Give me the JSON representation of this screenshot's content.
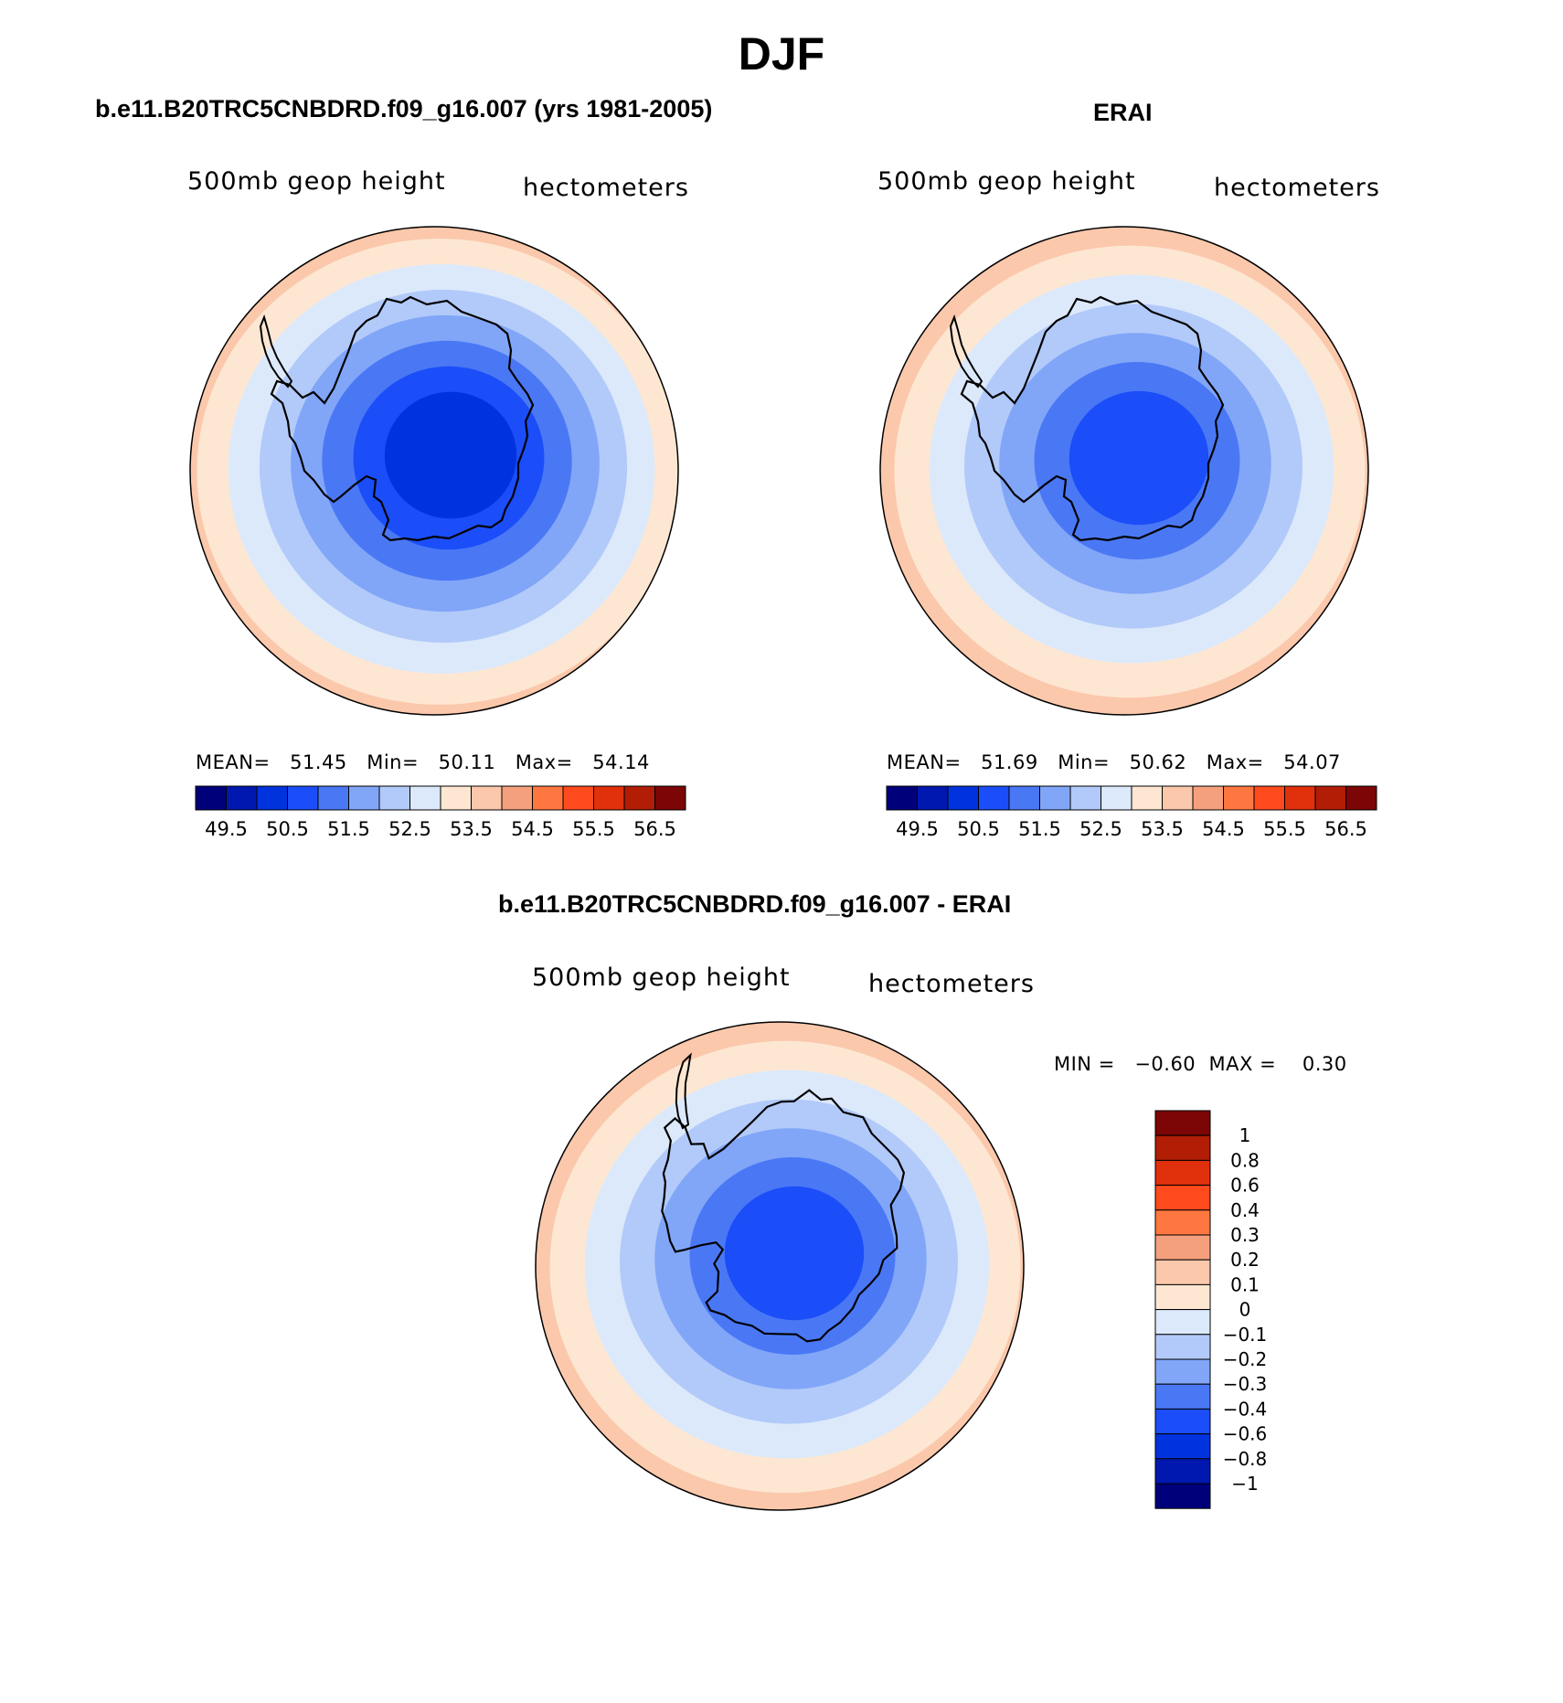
{
  "figure": {
    "season": "DJF",
    "coastline_color": "#000000"
  },
  "panels": {
    "model": {
      "title": "b.e11.B20TRC5CNBDRD.f09_g16.007 (yrs 1981-2005)",
      "variable": "500mb geop height",
      "units": "hectometers",
      "stats": "MEAN=   51.45   Min=   50.11   Max=   54.14"
    },
    "obs": {
      "title": "ERAI",
      "variable": "500mb geop height",
      "units": "hectometers",
      "stats": "MEAN=   51.69   Min=   50.62   Max=   54.07"
    },
    "diff": {
      "title": "b.e11.B20TRC5CNBDRD.f09_g16.007 - ERAI",
      "variable": "500mb geop height",
      "units": "hectometers",
      "stats": "MIN =   −0.60  MAX =    0.30"
    }
  },
  "chart_data": [
    {
      "type": "heatmap",
      "name": "model",
      "title": "500mb geop height",
      "units": "hectometers",
      "projection": "south polar stereographic",
      "mean": 51.45,
      "min": 50.11,
      "max": 54.14,
      "levels": [
        "49.5",
        "50.5",
        "51.5",
        "52.5",
        "53.5",
        "54.5",
        "55.5",
        "56.5"
      ],
      "colors": [
        "#00007a",
        "#0018b0",
        "#0033de",
        "#1b4ef8",
        "#4a78f5",
        "#81a6f8",
        "#b2caf9",
        "#dce9fb",
        "#fde7d3",
        "#fbc8ac",
        "#f5a07c",
        "#ff7740",
        "#ff4a1e",
        "#e0300c",
        "#b11d05",
        "#7c0505"
      ],
      "region_values": [
        50.2,
        50.8,
        51.2,
        51.7,
        52.2,
        52.7,
        53.2,
        53.7,
        54.1
      ],
      "coast_rotation_deg": 0
    },
    {
      "type": "heatmap",
      "name": "obs",
      "title": "500mb geop height",
      "units": "hectometers",
      "projection": "south polar stereographic",
      "mean": 51.69,
      "min": 50.62,
      "max": 54.07,
      "levels": [
        "49.5",
        "50.5",
        "51.5",
        "52.5",
        "53.5",
        "54.5",
        "55.5",
        "56.5"
      ],
      "colors": [
        "#00007a",
        "#0018b0",
        "#0033de",
        "#1b4ef8",
        "#4a78f5",
        "#81a6f8",
        "#b2caf9",
        "#dce9fb",
        "#fde7d3",
        "#fbc8ac",
        "#f5a07c",
        "#ff7740",
        "#ff4a1e",
        "#e0300c",
        "#b11d05",
        "#7c0505"
      ],
      "region_values": [
        50.7,
        51.2,
        51.7,
        52.2,
        52.7,
        53.2,
        53.7,
        54.0
      ],
      "coast_rotation_deg": 0
    },
    {
      "type": "heatmap",
      "name": "diff",
      "title": "500mb geop height",
      "units": "hectometers",
      "projection": "south polar stereographic",
      "min": -0.6,
      "max": 0.3,
      "levels": [
        "1",
        "0.8",
        "0.6",
        "0.4",
        "0.3",
        "0.2",
        "0.1",
        "0",
        "−0.1",
        "−0.2",
        "−0.3",
        "−0.4",
        "−0.6",
        "−0.8",
        "−1"
      ],
      "colors": [
        "#7c0505",
        "#b11d05",
        "#e0300c",
        "#ff4a1e",
        "#ff7740",
        "#f5a07c",
        "#fbc8ac",
        "#fde7d3",
        "#dce9fb",
        "#b2caf9",
        "#81a6f8",
        "#4a78f5",
        "#1b4ef8",
        "#0033de",
        "#0018b0",
        "#00007a"
      ],
      "region_values": [
        -0.5,
        -0.35,
        -0.25,
        -0.15,
        -0.05,
        0.05,
        0.15,
        0.25
      ],
      "coast_rotation_deg": 25
    }
  ]
}
